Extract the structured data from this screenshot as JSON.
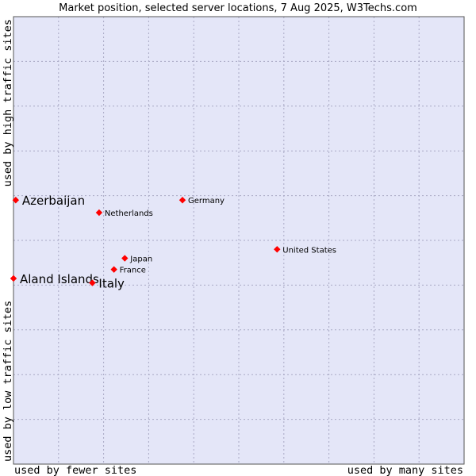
{
  "chart_data": {
    "type": "scatter",
    "title": "Market position, selected server locations, 7 Aug 2025, W3Techs.com",
    "xlabel_left": "used by fewer sites",
    "xlabel_right": "used by many sites",
    "ylabel_bottom": "used by low traffic sites",
    "ylabel_top": "used by high traffic sites",
    "xlim": [
      0,
      100
    ],
    "ylim": [
      0,
      100
    ],
    "grid": true,
    "colors": {
      "plot_bg": "#e4e6f8",
      "grid": "#a8a8c4",
      "point": "#ff0000",
      "border": "#555555"
    },
    "points": [
      {
        "label": "Azerbaijan",
        "x": 0.5,
        "y": 59.0,
        "emphasis": true
      },
      {
        "label": "Netherlands",
        "x": 19.0,
        "y": 56.2,
        "emphasis": false
      },
      {
        "label": "Germany",
        "x": 37.5,
        "y": 59.0,
        "emphasis": false
      },
      {
        "label": "United States",
        "x": 58.5,
        "y": 48.0,
        "emphasis": false
      },
      {
        "label": "Japan",
        "x": 24.7,
        "y": 46.0,
        "emphasis": false
      },
      {
        "label": "France",
        "x": 22.3,
        "y": 43.5,
        "emphasis": false
      },
      {
        "label": "Aland Islands",
        "x": 0.0,
        "y": 41.5,
        "emphasis": true
      },
      {
        "label": "Italy",
        "x": 17.5,
        "y": 40.5,
        "emphasis": true
      }
    ]
  }
}
